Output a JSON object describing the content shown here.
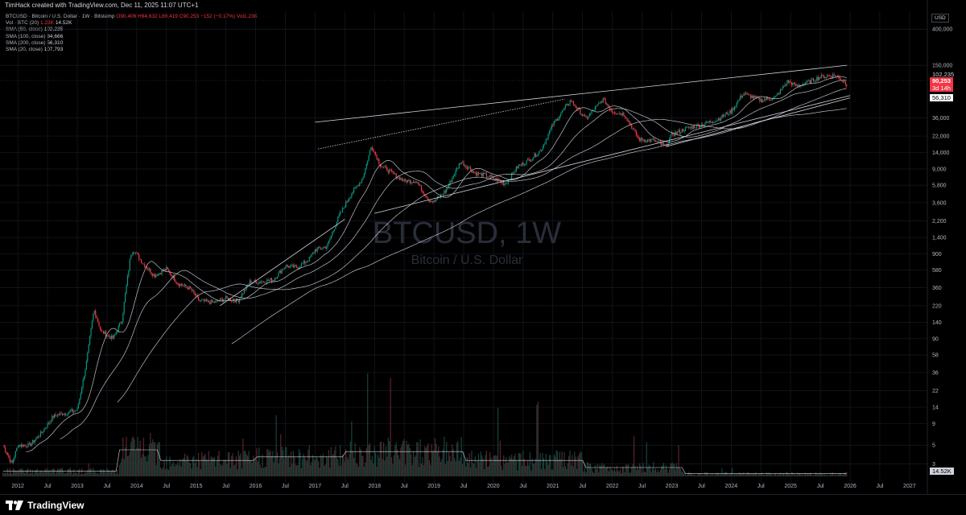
{
  "header": {
    "creator_text": "TimHack created with TradingView.com, Dec 11, 2025 11:07 UTC+1"
  },
  "legend": {
    "symbol_line": "BTCUSD · Bitcoin / U.S. Dollar · 1W · Bitstamp",
    "ohlc": "O90,406 H94,632 L89,419 C90,253 −152 (−0.17%) Vol1.23K",
    "vol_line_label": "Vol · BTC (20)",
    "vol_line_v1": "1.23K",
    "vol_line_v2": "14.52K",
    "sma": [
      {
        "label": "SMA (50, close)",
        "value": "102,235"
      },
      {
        "label": "SMA (100, close)",
        "value": "84,666"
      },
      {
        "label": "SMA (200, close)",
        "value": "56,310"
      },
      {
        "label": "SMA (20, close)",
        "value": "107,793"
      }
    ]
  },
  "axis": {
    "currency": "USD",
    "price_tags": {
      "sma50": "102,235",
      "last": "90,253",
      "countdown": "3d 14h",
      "sma200": "56,310",
      "volume": "14.52K"
    }
  },
  "watermark": {
    "symbol": "BTCUSD, 1W",
    "name": "Bitcoin / U.S. Dollar"
  },
  "footer": {
    "brand": "TradingView"
  },
  "colors": {
    "up": "#089981",
    "down": "#f23645",
    "sma": "#d1d4dc",
    "background": "#000000",
    "grid": "#161a22"
  },
  "chart_data": {
    "type": "line",
    "title": "BTCUSD, 1W",
    "subtitle": "Bitcoin / U.S. Dollar",
    "y_scale": "log",
    "ylim": [
      1.8,
      650000
    ],
    "y_ticks": [
      3,
      5,
      9,
      14,
      22,
      36,
      58,
      90,
      140,
      220,
      360,
      580,
      900,
      1400,
      2200,
      3600,
      5800,
      9000,
      14000,
      22000,
      36000,
      150000,
      400000
    ],
    "y_tick_labels": [
      "3",
      "5",
      "9",
      "14",
      "22",
      "36",
      "58",
      "90",
      "140",
      "220",
      "360",
      "580",
      "900",
      "1,400",
      "2,200",
      "3,600",
      "5,800",
      "9,000",
      "14,000",
      "22,000",
      "36,000",
      "150,000",
      "400,000"
    ],
    "x_ticks": [
      2012,
      2012.5,
      2013,
      2013.5,
      2014,
      2014.5,
      2015,
      2015.5,
      2016,
      2016.5,
      2017,
      2017.5,
      2018,
      2018.5,
      2019,
      2019.5,
      2020,
      2020.5,
      2021,
      2021.5,
      2022,
      2022.5,
      2023,
      2023.5,
      2024,
      2024.5,
      2025,
      2025.5,
      2026,
      2026.5,
      2027
    ],
    "x_tick_labels": [
      "2012",
      "Jul",
      "2013",
      "Jul",
      "2014",
      "Jul",
      "2015",
      "Jul",
      "2016",
      "Jul",
      "2017",
      "Jul",
      "2018",
      "Jul",
      "2019",
      "Jul",
      "2020",
      "Jul",
      "2021",
      "Jul",
      "2022",
      "Jul",
      "2023",
      "Jul",
      "2024",
      "Jul",
      "2025",
      "Jul",
      "2026",
      "Jul",
      "2027"
    ],
    "xlim": [
      2011.7,
      2027.3
    ],
    "series": [
      {
        "type": "price",
        "x": [
          2011.75,
          2011.9,
          2012.0,
          2012.2,
          2012.4,
          2012.6,
          2012.8,
          2013.0,
          2013.15,
          2013.28,
          2013.4,
          2013.6,
          2013.75,
          2013.9,
          2013.95,
          2014.1,
          2014.3,
          2014.5,
          2014.7,
          2014.9,
          2015.05,
          2015.3,
          2015.5,
          2015.7,
          2015.9,
          2016.1,
          2016.3,
          2016.5,
          2016.7,
          2016.9,
          2017.0,
          2017.2,
          2017.4,
          2017.6,
          2017.8,
          2017.95,
          2018.1,
          2018.3,
          2018.5,
          2018.7,
          2018.9,
          2019.0,
          2019.2,
          2019.45,
          2019.7,
          2019.9,
          2020.2,
          2020.4,
          2020.6,
          2020.8,
          2021.0,
          2021.3,
          2021.55,
          2021.85,
          2022.0,
          2022.2,
          2022.45,
          2022.7,
          2022.9,
          2023.0,
          2023.25,
          2023.5,
          2023.75,
          2024.0,
          2024.2,
          2024.5,
          2024.75,
          2024.95,
          2025.1,
          2025.3,
          2025.5,
          2025.75,
          2025.95
        ],
        "y": [
          5,
          3,
          5,
          5,
          7,
          11,
          12,
          13,
          45,
          200,
          110,
          90,
          150,
          900,
          1000,
          700,
          500,
          600,
          400,
          350,
          250,
          240,
          270,
          250,
          420,
          420,
          450,
          650,
          620,
          780,
          1000,
          1100,
          2500,
          4500,
          7000,
          17000,
          10000,
          8000,
          6500,
          6500,
          4000,
          3700,
          5000,
          11000,
          8000,
          7500,
          6000,
          9500,
          11500,
          15000,
          30000,
          58000,
          35000,
          60000,
          43000,
          40000,
          20000,
          19500,
          16500,
          23000,
          27000,
          30000,
          34000,
          43000,
          70000,
          58000,
          63000,
          98000,
          85000,
          95000,
          110000,
          115000,
          90253
        ]
      }
    ]
  }
}
